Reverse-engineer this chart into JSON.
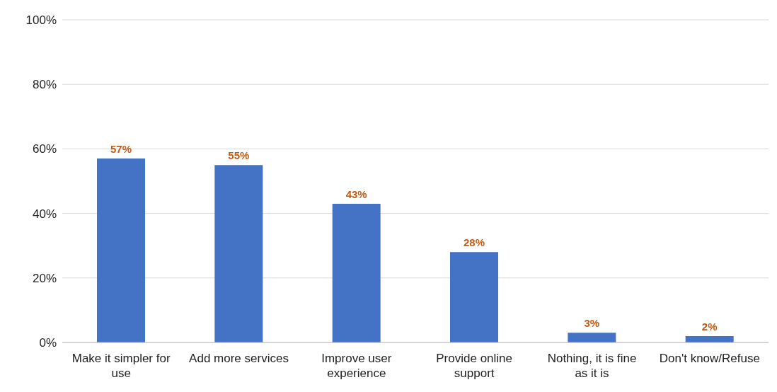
{
  "chart_data": {
    "type": "bar",
    "categories": [
      "Make it simpler for use",
      "Add more services",
      "Improve user experience",
      "Provide online support",
      "Nothing, it is fine as it is",
      "Don't know/Refuse"
    ],
    "values": [
      57,
      55,
      43,
      28,
      3,
      2
    ],
    "value_labels": [
      "57%",
      "55%",
      "43%",
      "28%",
      "3%",
      "2%"
    ],
    "color": "#4472c4",
    "ylim": [
      0,
      100
    ],
    "yticks": [
      {
        "value": 0,
        "label": "0%"
      },
      {
        "value": 20,
        "label": "20%"
      },
      {
        "value": 40,
        "label": "40%"
      },
      {
        "value": 60,
        "label": "60%"
      },
      {
        "value": 80,
        "label": "80%"
      },
      {
        "value": 100,
        "label": "100%"
      }
    ],
    "grid": "y"
  }
}
